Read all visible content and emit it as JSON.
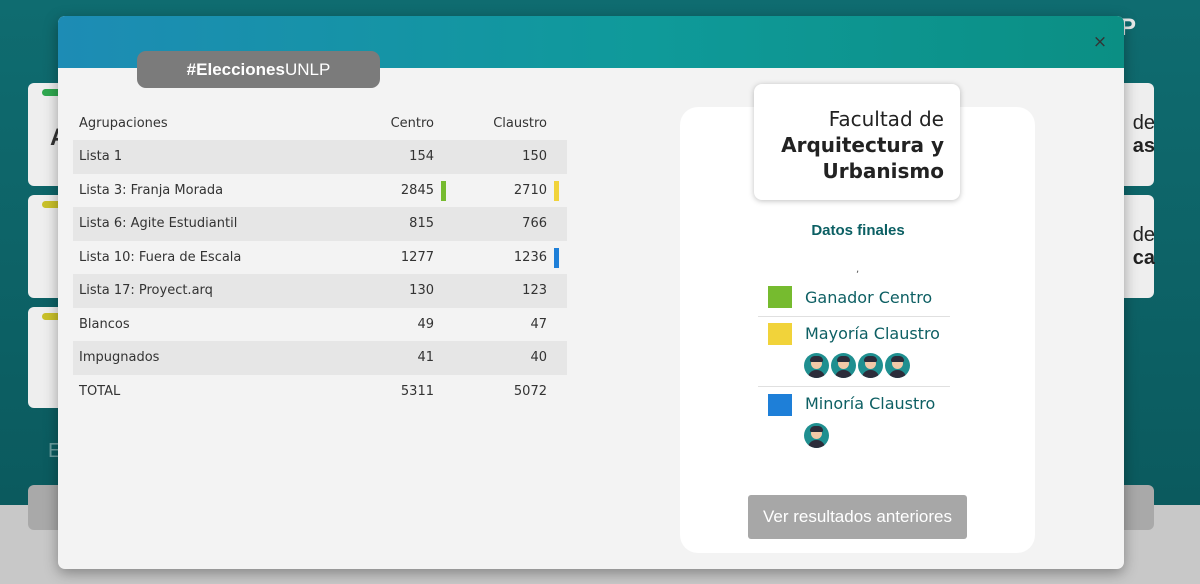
{
  "background": {
    "right_text_1_a": "de",
    "right_text_1_b": "as",
    "right_text_2_a": "de",
    "right_text_2_b": "ca",
    "left_letter": "A",
    "left_e": "E",
    "corner_letter": "P"
  },
  "modal": {
    "close_label": "×",
    "hashtag_bold": "#Elecciones",
    "hashtag_rest": "UNLP",
    "table": {
      "headers": [
        "Agrupaciones",
        "Centro",
        "Claustro"
      ],
      "rows": [
        {
          "name": "Lista 1",
          "centro": "154",
          "claustro": "150"
        },
        {
          "name": "Lista 3: Franja Morada",
          "centro": "2845",
          "claustro": "2710"
        },
        {
          "name": "Lista 6: Agite Estudiantil",
          "centro": "815",
          "claustro": "766"
        },
        {
          "name": "Lista 10: Fuera de Escala",
          "centro": "1277",
          "claustro": "1236"
        },
        {
          "name": "Lista 17: Proyect.arq",
          "centro": "130",
          "claustro": "123"
        },
        {
          "name": "Blancos",
          "centro": "49",
          "claustro": "47"
        },
        {
          "name": "Impugnados",
          "centro": "41",
          "claustro": "40"
        },
        {
          "name": "TOTAL",
          "centro": "5311",
          "claustro": "5072"
        }
      ]
    },
    "faculty": {
      "line1": "Facultad de",
      "line2": "Arquitectura y",
      "line3": "Urbanismo"
    },
    "final_title": "Datos finales",
    "tick": ",",
    "legend": {
      "ganador": "Ganador Centro",
      "mayoria": "Mayoría Claustro",
      "minoria": "Minoría Claustro"
    },
    "seats": {
      "mayoria": 4,
      "minoria": 1
    },
    "colors": {
      "ganador": "#76bb2f",
      "mayoria": "#f1d33a",
      "minoria": "#1e7fd8"
    },
    "previous_button": "Ver resultados anteriores"
  }
}
